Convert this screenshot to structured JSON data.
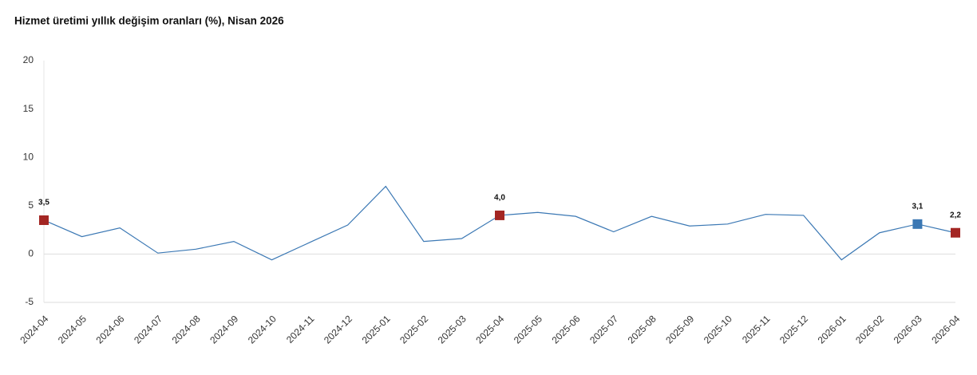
{
  "chart_data": {
    "type": "line",
    "title": "Hizmet üretimi yıllık değişim oranları (%), Nisan 2026",
    "categories": [
      "2024-04",
      "2024-05",
      "2024-06",
      "2024-07",
      "2024-08",
      "2024-09",
      "2024-10",
      "2024-11",
      "2024-12",
      "2025-01",
      "2025-02",
      "2025-03",
      "2025-04",
      "2025-05",
      "2025-06",
      "2025-07",
      "2025-08",
      "2025-09",
      "2025-10",
      "2025-11",
      "2025-12",
      "2026-01",
      "2026-02",
      "2026-03",
      "2026-04"
    ],
    "series": [
      {
        "name": "Hizmet üretimi",
        "color": "#3b78b4",
        "values": [
          3.5,
          1.8,
          2.7,
          0.1,
          0.5,
          1.3,
          -0.6,
          1.2,
          3.0,
          7.0,
          1.3,
          1.6,
          4.0,
          4.3,
          3.9,
          2.3,
          3.9,
          2.9,
          3.1,
          4.1,
          4.0,
          -0.6,
          2.2,
          3.1,
          2.2
        ],
        "value_labels": [
          "3,5",
          null,
          null,
          null,
          null,
          null,
          null,
          null,
          null,
          null,
          null,
          null,
          "4,0",
          null,
          null,
          null,
          null,
          null,
          null,
          null,
          null,
          null,
          null,
          "3,1",
          "2,2"
        ],
        "marker_colors": [
          "#a32623",
          null,
          null,
          null,
          null,
          null,
          null,
          null,
          null,
          null,
          null,
          null,
          "#a32623",
          null,
          null,
          null,
          null,
          null,
          null,
          null,
          null,
          null,
          null,
          "#3b78b4",
          "#a32623"
        ]
      }
    ],
    "ylim": [
      -5,
      20
    ],
    "yticks": [
      -5,
      0,
      5,
      10,
      15,
      20
    ],
    "grid": false
  }
}
